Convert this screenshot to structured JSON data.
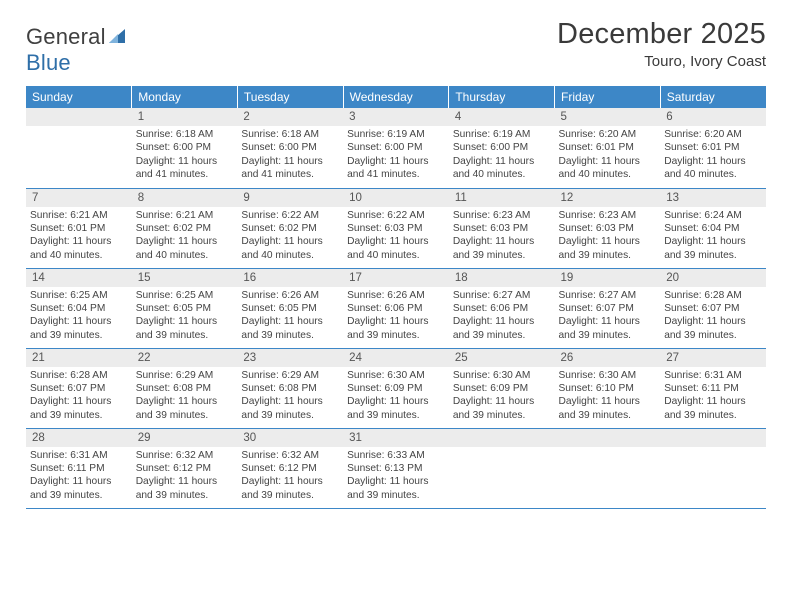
{
  "logo": {
    "text1": "General",
    "text2": "Blue"
  },
  "title": "December 2025",
  "subtitle": "Touro, Ivory Coast",
  "colors": {
    "header_bg": "#3d87c7",
    "header_text": "#ffffff",
    "daynum_bg": "#ececec",
    "border": "#3d87c7",
    "body_text": "#444444",
    "title_text": "#3a3a3a",
    "logo_gray": "#5b5b5b",
    "logo_blue": "#2f6fa8"
  },
  "day_headers": [
    "Sunday",
    "Monday",
    "Tuesday",
    "Wednesday",
    "Thursday",
    "Friday",
    "Saturday"
  ],
  "start_offset": 1,
  "days": [
    {
      "n": 1,
      "sunrise": "6:18 AM",
      "sunset": "6:00 PM",
      "daylight": "11 hours and 41 minutes."
    },
    {
      "n": 2,
      "sunrise": "6:18 AM",
      "sunset": "6:00 PM",
      "daylight": "11 hours and 41 minutes."
    },
    {
      "n": 3,
      "sunrise": "6:19 AM",
      "sunset": "6:00 PM",
      "daylight": "11 hours and 41 minutes."
    },
    {
      "n": 4,
      "sunrise": "6:19 AM",
      "sunset": "6:00 PM",
      "daylight": "11 hours and 40 minutes."
    },
    {
      "n": 5,
      "sunrise": "6:20 AM",
      "sunset": "6:01 PM",
      "daylight": "11 hours and 40 minutes."
    },
    {
      "n": 6,
      "sunrise": "6:20 AM",
      "sunset": "6:01 PM",
      "daylight": "11 hours and 40 minutes."
    },
    {
      "n": 7,
      "sunrise": "6:21 AM",
      "sunset": "6:01 PM",
      "daylight": "11 hours and 40 minutes."
    },
    {
      "n": 8,
      "sunrise": "6:21 AM",
      "sunset": "6:02 PM",
      "daylight": "11 hours and 40 minutes."
    },
    {
      "n": 9,
      "sunrise": "6:22 AM",
      "sunset": "6:02 PM",
      "daylight": "11 hours and 40 minutes."
    },
    {
      "n": 10,
      "sunrise": "6:22 AM",
      "sunset": "6:03 PM",
      "daylight": "11 hours and 40 minutes."
    },
    {
      "n": 11,
      "sunrise": "6:23 AM",
      "sunset": "6:03 PM",
      "daylight": "11 hours and 39 minutes."
    },
    {
      "n": 12,
      "sunrise": "6:23 AM",
      "sunset": "6:03 PM",
      "daylight": "11 hours and 39 minutes."
    },
    {
      "n": 13,
      "sunrise": "6:24 AM",
      "sunset": "6:04 PM",
      "daylight": "11 hours and 39 minutes."
    },
    {
      "n": 14,
      "sunrise": "6:25 AM",
      "sunset": "6:04 PM",
      "daylight": "11 hours and 39 minutes."
    },
    {
      "n": 15,
      "sunrise": "6:25 AM",
      "sunset": "6:05 PM",
      "daylight": "11 hours and 39 minutes."
    },
    {
      "n": 16,
      "sunrise": "6:26 AM",
      "sunset": "6:05 PM",
      "daylight": "11 hours and 39 minutes."
    },
    {
      "n": 17,
      "sunrise": "6:26 AM",
      "sunset": "6:06 PM",
      "daylight": "11 hours and 39 minutes."
    },
    {
      "n": 18,
      "sunrise": "6:27 AM",
      "sunset": "6:06 PM",
      "daylight": "11 hours and 39 minutes."
    },
    {
      "n": 19,
      "sunrise": "6:27 AM",
      "sunset": "6:07 PM",
      "daylight": "11 hours and 39 minutes."
    },
    {
      "n": 20,
      "sunrise": "6:28 AM",
      "sunset": "6:07 PM",
      "daylight": "11 hours and 39 minutes."
    },
    {
      "n": 21,
      "sunrise": "6:28 AM",
      "sunset": "6:07 PM",
      "daylight": "11 hours and 39 minutes."
    },
    {
      "n": 22,
      "sunrise": "6:29 AM",
      "sunset": "6:08 PM",
      "daylight": "11 hours and 39 minutes."
    },
    {
      "n": 23,
      "sunrise": "6:29 AM",
      "sunset": "6:08 PM",
      "daylight": "11 hours and 39 minutes."
    },
    {
      "n": 24,
      "sunrise": "6:30 AM",
      "sunset": "6:09 PM",
      "daylight": "11 hours and 39 minutes."
    },
    {
      "n": 25,
      "sunrise": "6:30 AM",
      "sunset": "6:09 PM",
      "daylight": "11 hours and 39 minutes."
    },
    {
      "n": 26,
      "sunrise": "6:30 AM",
      "sunset": "6:10 PM",
      "daylight": "11 hours and 39 minutes."
    },
    {
      "n": 27,
      "sunrise": "6:31 AM",
      "sunset": "6:11 PM",
      "daylight": "11 hours and 39 minutes."
    },
    {
      "n": 28,
      "sunrise": "6:31 AM",
      "sunset": "6:11 PM",
      "daylight": "11 hours and 39 minutes."
    },
    {
      "n": 29,
      "sunrise": "6:32 AM",
      "sunset": "6:12 PM",
      "daylight": "11 hours and 39 minutes."
    },
    {
      "n": 30,
      "sunrise": "6:32 AM",
      "sunset": "6:12 PM",
      "daylight": "11 hours and 39 minutes."
    },
    {
      "n": 31,
      "sunrise": "6:33 AM",
      "sunset": "6:13 PM",
      "daylight": "11 hours and 39 minutes."
    }
  ],
  "labels": {
    "sunrise": "Sunrise:",
    "sunset": "Sunset:",
    "daylight": "Daylight:"
  }
}
